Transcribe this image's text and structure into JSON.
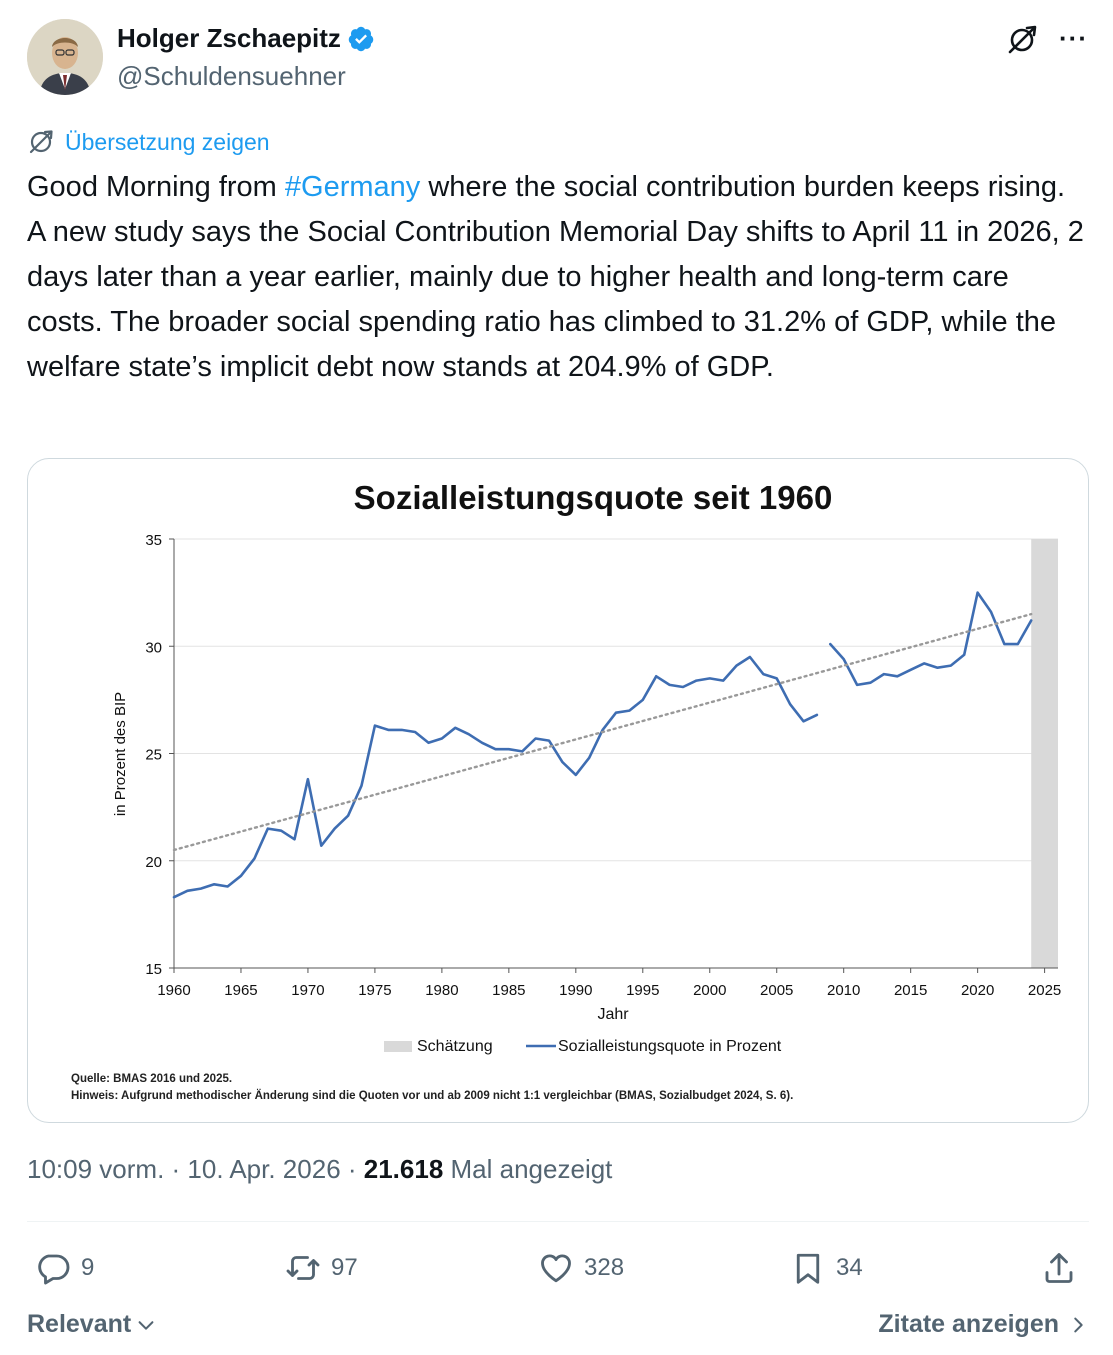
{
  "author": {
    "name": "Holger Zschaepitz",
    "handle": "@Schuldensuehner",
    "verified": true,
    "verified_color": "#1d9bf0"
  },
  "translate_label": "Übersetzung zeigen",
  "tweet": {
    "before": "Good Morning from ",
    "hashtag": "#Germany",
    "after": " where the social contribution burden keeps rising. A new study says the Social Contribution Memorial Day shifts to April 11 in 2026, 2 days later than a year earlier, mainly due to higher health and long-term care costs. The broader social spending ratio has climbed to 31.2% of GDP, while the welfare state’s implicit debt now stands at 204.9% of GDP."
  },
  "chart_data": {
    "type": "line",
    "title": "Sozialleistungsquote seit 1960",
    "xlabel": "Jahr",
    "ylabel": "in Prozent des BIP",
    "xlim": [
      1960,
      2025
    ],
    "ylim": [
      15,
      35
    ],
    "x_ticks": [
      "1960",
      "1965",
      "1970",
      "1975",
      "1980",
      "1985",
      "1990",
      "1995",
      "2000",
      "2005",
      "2010",
      "2015",
      "2020",
      "2025"
    ],
    "y_ticks": [
      "15",
      "20",
      "25",
      "30",
      "35"
    ],
    "grid": "horizontal",
    "legend_position": "bottom",
    "legend": [
      "Schätzung",
      "Sozialleistungsquote in Prozent"
    ],
    "shaded_region": {
      "label": "Schätzung",
      "from": 2024,
      "to": 2026,
      "color": "#d9d9d9"
    },
    "series": [
      {
        "name": "Sozialleistungsquote in Prozent",
        "color": "#3e6db2",
        "segments": [
          {
            "x": [
              1960,
              1961,
              1962,
              1963,
              1964,
              1965,
              1966,
              1967,
              1968,
              1969,
              1970,
              1971,
              1972,
              1973,
              1974,
              1975,
              1976,
              1977,
              1978,
              1979,
              1980,
              1981,
              1982,
              1983,
              1984,
              1985,
              1986,
              1987,
              1988,
              1989,
              1990,
              1991,
              1992,
              1993,
              1994,
              1995,
              1996,
              1997,
              1998,
              1999,
              2000,
              2001,
              2002,
              2003,
              2004,
              2005,
              2006,
              2007,
              2008
            ],
            "y": [
              18.3,
              18.6,
              18.7,
              18.9,
              18.8,
              19.3,
              20.1,
              21.5,
              21.4,
              21.0,
              23.8,
              20.7,
              21.5,
              22.1,
              23.5,
              26.3,
              26.1,
              26.1,
              26.0,
              25.5,
              25.7,
              26.2,
              25.9,
              25.5,
              25.2,
              25.2,
              25.1,
              25.7,
              25.6,
              24.6,
              24.0,
              24.8,
              26.1,
              26.9,
              27.0,
              27.5,
              28.6,
              28.2,
              28.1,
              28.4,
              28.5,
              28.4,
              29.1,
              29.5,
              28.7,
              28.5,
              27.3,
              26.5,
              26.8
            ]
          },
          {
            "x": [
              2009,
              2010,
              2011,
              2012,
              2013,
              2014,
              2015,
              2016,
              2017,
              2018,
              2019,
              2020,
              2021,
              2022,
              2023,
              2024
            ],
            "y": [
              30.1,
              29.4,
              28.2,
              28.3,
              28.7,
              28.6,
              28.9,
              29.2,
              29.0,
              29.1,
              29.6,
              32.5,
              31.6,
              30.1,
              30.1,
              31.2
            ]
          }
        ]
      },
      {
        "name": "Trend",
        "style": "dotted",
        "color": "#999999",
        "x": [
          1960,
          2024
        ],
        "y": [
          20.5,
          31.5
        ]
      }
    ],
    "source_note": "Quelle: BMAS 2016 und 2025.",
    "hint_note": "Hinweis: Aufgrund methodischer Änderung sind die Quoten vor und ab 2009 nicht 1:1 vergleichbar (BMAS, Sozialbudget 2024, S. 6)."
  },
  "meta": {
    "time": "10:09 vorm.",
    "sep": " · ",
    "date": "10. Apr. 2026",
    "sep2": " · ",
    "views": "21.618",
    "views_label": " Mal angezeigt"
  },
  "actions": {
    "replies": "9",
    "reposts": "97",
    "likes": "328",
    "bookmarks": "34"
  },
  "footer": {
    "sort_label": "Relevant",
    "quotes_label": "Zitate anzeigen"
  },
  "icons": {
    "reply": "reply-icon",
    "repost": "repost-icon",
    "like": "heart-icon",
    "bookmark": "bookmark-icon",
    "share": "share-icon",
    "grok": "grok-icon",
    "more": "more-icon",
    "translate": "translate-icon"
  }
}
